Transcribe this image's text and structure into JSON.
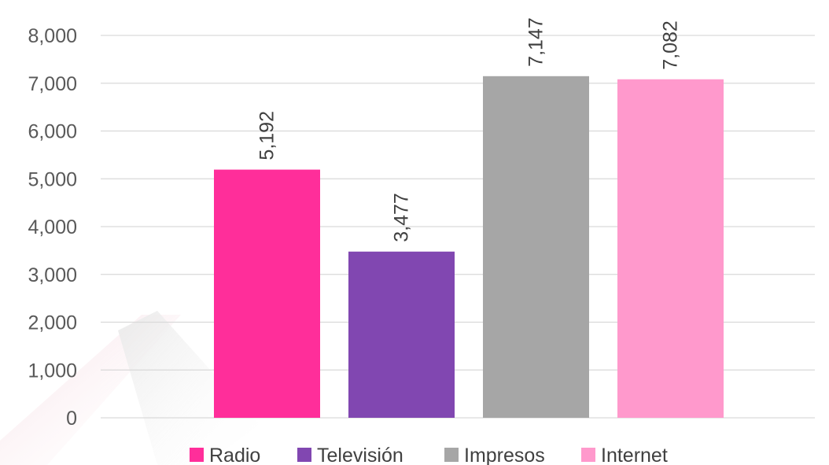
{
  "chart_data": {
    "type": "bar",
    "categories": [
      "Radio",
      "Televisión",
      "Impresos",
      "Internet"
    ],
    "values": [
      5192,
      3477,
      7147,
      7082
    ],
    "value_labels": [
      "5,192",
      "3,477",
      "7,147",
      "7,082"
    ],
    "colors": [
      "#FF2E9A",
      "#8147B1",
      "#A6A6A6",
      "#FF99CC"
    ],
    "ylim": [
      0,
      8000
    ],
    "yticks": [
      0,
      1000,
      2000,
      3000,
      4000,
      5000,
      6000,
      7000,
      8000
    ],
    "ytick_labels": [
      "0",
      "1,000",
      "2,000",
      "3,000",
      "4,000",
      "5,000",
      "6,000",
      "7,000",
      "8,000"
    ],
    "title": "",
    "xlabel": "",
    "ylabel": "",
    "grid": true,
    "legend_position": "bottom",
    "legend": [
      "Radio",
      "Televisión",
      "Impresos",
      "Internet"
    ]
  }
}
